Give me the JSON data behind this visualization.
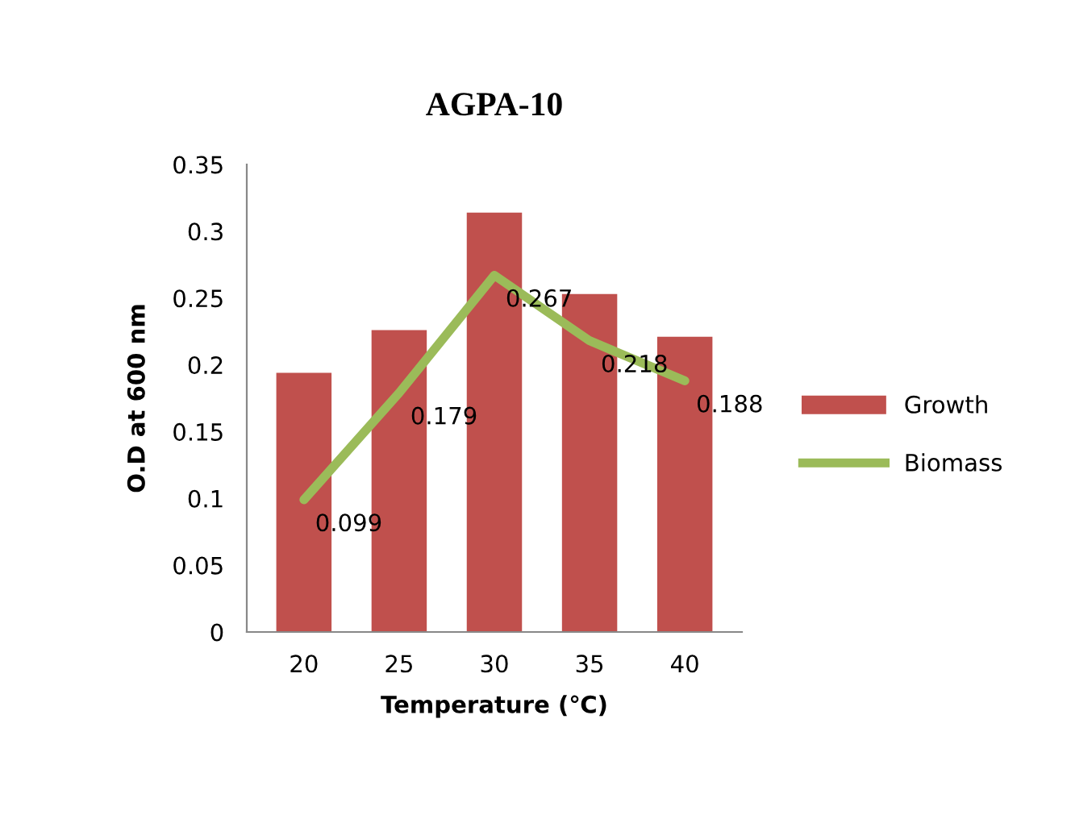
{
  "chart_data": {
    "type": "bar",
    "title": "AGPA-10",
    "xlabel": "Temperature (℃)",
    "ylabel": "O.D at 600 nm",
    "categories": [
      "20",
      "25",
      "30",
      "35",
      "40"
    ],
    "series": [
      {
        "name": "Growth",
        "color": "#c0504d",
        "values": [
          0.194,
          0.226,
          0.314,
          0.253,
          0.221
        ]
      },
      {
        "name": "Biomass",
        "type": "line",
        "color": "#9bbb59",
        "values": [
          0.099,
          0.179,
          0.267,
          0.218,
          0.188
        ],
        "value_labels": [
          "0.099",
          "0.179",
          "0.267",
          "0.218",
          "0.188"
        ]
      }
    ],
    "ylim": [
      0,
      0.35
    ],
    "yticks": [
      0,
      {
        "value": 0.05,
        "label": "0.05"
      },
      {
        "value": 0.1,
        "label": "0.1"
      },
      {
        "value": 0.15,
        "label": "0.15"
      },
      {
        "value": 0.2,
        "label": "0.2"
      },
      {
        "value": 0.25,
        "label": "0.25"
      },
      {
        "value": 0.3,
        "label": "0.3"
      },
      {
        "value": 0.35,
        "label": "0.35"
      }
    ],
    "grid": false,
    "legend": "right"
  }
}
